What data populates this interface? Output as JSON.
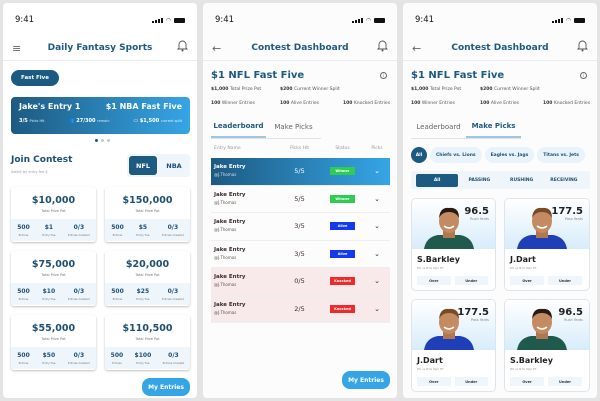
{
  "status_time": "9:41",
  "colors": {
    "primary": "#1d5a82",
    "accent": "#36a5e6",
    "winner": "#2ecc51",
    "alive": "#1238f0",
    "knocked": "#f02a2a",
    "knocked_row": "#f8e9ea"
  },
  "screen1": {
    "title": "Daily Fantasy Sports",
    "menu_icon": "hamburger-icon",
    "bell_icon": "bell-icon",
    "pill": "Fast Five",
    "hero": {
      "entry": "Jake's Entry 1",
      "contest": "$1 NBA Fast Five",
      "picks": "3/5",
      "picks_label": "Picks Hit",
      "remain": "27/300",
      "remain_label": "remain",
      "split": "$1,500",
      "split_label": "current split"
    },
    "join_title": "Join Contest",
    "join_sub": "Select by entry fee $",
    "toggle": [
      "NFL",
      "NBA"
    ],
    "contests": [
      {
        "prize": "$10,000",
        "entries": "500",
        "fee": "$1",
        "created": "0/3"
      },
      {
        "prize": "$150,000",
        "entries": "500",
        "fee": "$5",
        "created": "0/3"
      },
      {
        "prize": "$75,000",
        "entries": "500",
        "fee": "$10",
        "created": "0/3"
      },
      {
        "prize": "$20,000",
        "entries": "500",
        "fee": "$25",
        "created": "0/3"
      },
      {
        "prize": "$55,000",
        "entries": "500",
        "fee": "$50",
        "created": "0/3"
      },
      {
        "prize": "$110,500",
        "entries": "500",
        "fee": "$100",
        "created": "0/3"
      }
    ],
    "labels": {
      "prize": "Total Prize Pot",
      "entries": "Entries",
      "fee": "Entry Fee",
      "created": "Entries Created"
    },
    "my_entries": "My Entries"
  },
  "dashboard": {
    "title": "Contest Dashboard",
    "contest": "$1 NFL Fast Five",
    "stats": [
      {
        "v": "$1,000",
        "l": "Total Prize Pot"
      },
      {
        "v": "$200",
        "l": "Current Winner Split"
      },
      {
        "v": "100",
        "l": "Winner Entries"
      },
      {
        "v": "100",
        "l": "Alive Entries"
      },
      {
        "v": "100",
        "l": "Knocked Entries"
      }
    ],
    "tabs": [
      "Leaderboard",
      "Make Picks"
    ],
    "columns": [
      "Entry Name",
      "Picks Hit",
      "Status",
      "Picks"
    ],
    "rows": [
      {
        "name": "Jake Entry",
        "user": "@J.Thomas",
        "hit": "5/5",
        "status": "Winner"
      },
      {
        "name": "Jake Entry",
        "user": "@J.Thomas",
        "hit": "5/5",
        "status": "Winner"
      },
      {
        "name": "Jake Entry",
        "user": "@J.Thomas",
        "hit": "3/5",
        "status": "Alive"
      },
      {
        "name": "Jake Entry",
        "user": "@J.Thomas",
        "hit": "3/5",
        "status": "Alive"
      },
      {
        "name": "Jake Entry",
        "user": "@J.Thomas",
        "hit": "0/5",
        "status": "Knocked"
      },
      {
        "name": "Jake Entry",
        "user": "@J.Thomas",
        "hit": "2/5",
        "status": "Knocked"
      }
    ],
    "my_entries": "My Entries"
  },
  "picks": {
    "games": [
      "All",
      "Chiefs vs. Lions",
      "Eagles vs. Jags",
      "Titans vs. Jets"
    ],
    "categories": [
      "All",
      "PASSING",
      "RUSHING",
      "RECEIVING"
    ],
    "players": [
      {
        "name": "S.Barkley",
        "line": "96.5",
        "stat": "Rush Yards",
        "game": "Phi vs NYG 8pm ET",
        "jersey": "#1f5a4c"
      },
      {
        "name": "J.Dart",
        "line": "177.5",
        "stat": "Pass Yards",
        "game": "Phi vs NYG 8pm ET",
        "jersey": "#1e3fb8"
      },
      {
        "name": "J.Dart",
        "line": "177.5",
        "stat": "Pass Yards",
        "game": "Phi vs NYG 8pm ET",
        "jersey": "#1e3fb8"
      },
      {
        "name": "S.Barkley",
        "line": "96.5",
        "stat": "Rush Yards",
        "game": "Phi vs NYG 8pm ET",
        "jersey": "#1f5a4c"
      }
    ],
    "over": "Over",
    "under": "Under"
  }
}
